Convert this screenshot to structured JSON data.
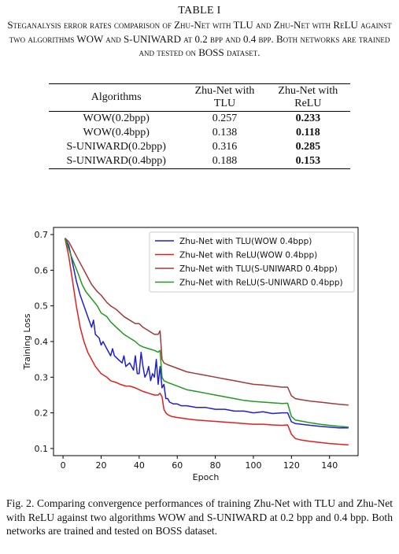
{
  "table": {
    "title": "TABLE I",
    "caption": "Steganalysis error rates comparison of Zhu-Net with TLU and Zhu-Net with ReLU against two algorithms WOW and S-UNIWARD at 0.2 bpp and 0.4 bpp. Both networks are trained and tested on BOSS dataset.",
    "headers": [
      "Algorithms",
      "Zhu-Net with TLU",
      "Zhu-Net with ReLU"
    ],
    "rows": [
      [
        "WOW(0.2bpp)",
        "0.257",
        "0.233"
      ],
      [
        "WOW(0.4bpp)",
        "0.138",
        "0.118"
      ],
      [
        "S-UNIWARD(0.2bpp)",
        "0.316",
        "0.285"
      ],
      [
        "S-UNIWARD(0.4bpp)",
        "0.188",
        "0.153"
      ]
    ]
  },
  "chart_data": {
    "type": "line",
    "title": "",
    "xlabel": "Epoch",
    "ylabel": "Training Loss",
    "xlim": [
      -5,
      155
    ],
    "ylim": [
      0.08,
      0.72
    ],
    "xticks": [
      0,
      20,
      40,
      60,
      80,
      100,
      120,
      140
    ],
    "yticks": [
      0.1,
      0.2,
      0.3,
      0.4,
      0.5,
      0.6,
      0.7
    ],
    "grid": false,
    "legend_position": "top-right",
    "series": [
      {
        "name": "Zhu-Net with TLU(WOW 0.4bpp)",
        "color": "#1f1fd0",
        "points": [
          [
            1,
            0.69
          ],
          [
            3,
            0.67
          ],
          [
            5,
            0.62
          ],
          [
            7,
            0.57
          ],
          [
            9,
            0.53
          ],
          [
            11,
            0.5
          ],
          [
            13,
            0.47
          ],
          [
            15,
            0.44
          ],
          [
            16,
            0.46
          ],
          [
            17,
            0.42
          ],
          [
            19,
            0.41
          ],
          [
            20,
            0.39
          ],
          [
            21,
            0.4
          ],
          [
            23,
            0.38
          ],
          [
            25,
            0.36
          ],
          [
            26,
            0.38
          ],
          [
            27,
            0.36
          ],
          [
            29,
            0.35
          ],
          [
            31,
            0.34
          ],
          [
            32,
            0.36
          ],
          [
            33,
            0.33
          ],
          [
            35,
            0.34
          ],
          [
            37,
            0.32
          ],
          [
            38,
            0.36
          ],
          [
            39,
            0.31
          ],
          [
            40,
            0.31
          ],
          [
            41,
            0.37
          ],
          [
            42,
            0.33
          ],
          [
            43,
            0.3
          ],
          [
            44,
            0.31
          ],
          [
            45,
            0.33
          ],
          [
            46,
            0.29
          ],
          [
            47,
            0.31
          ],
          [
            48,
            0.3
          ],
          [
            49,
            0.35
          ],
          [
            50,
            0.28
          ],
          [
            51,
            0.33
          ],
          [
            52,
            0.27
          ],
          [
            53,
            0.28
          ],
          [
            54,
            0.24
          ],
          [
            55,
            0.24
          ],
          [
            56,
            0.23
          ],
          [
            58,
            0.225
          ],
          [
            60,
            0.225
          ],
          [
            62,
            0.22
          ],
          [
            65,
            0.22
          ],
          [
            70,
            0.215
          ],
          [
            75,
            0.215
          ],
          [
            80,
            0.21
          ],
          [
            85,
            0.21
          ],
          [
            90,
            0.205
          ],
          [
            95,
            0.205
          ],
          [
            100,
            0.2
          ],
          [
            105,
            0.203
          ],
          [
            110,
            0.198
          ],
          [
            115,
            0.2
          ],
          [
            118,
            0.2
          ],
          [
            120,
            0.175
          ],
          [
            122,
            0.17
          ],
          [
            125,
            0.168
          ],
          [
            130,
            0.165
          ],
          [
            135,
            0.162
          ],
          [
            140,
            0.16
          ],
          [
            145,
            0.158
          ],
          [
            150,
            0.158
          ]
        ]
      },
      {
        "name": "Zhu-Net with ReLU(WOW 0.4bpp)",
        "color": "#e01f1f",
        "points": [
          [
            1,
            0.69
          ],
          [
            3,
            0.64
          ],
          [
            5,
            0.57
          ],
          [
            7,
            0.5
          ],
          [
            9,
            0.44
          ],
          [
            11,
            0.4
          ],
          [
            13,
            0.37
          ],
          [
            15,
            0.35
          ],
          [
            17,
            0.33
          ],
          [
            20,
            0.31
          ],
          [
            23,
            0.3
          ],
          [
            25,
            0.29
          ],
          [
            28,
            0.285
          ],
          [
            30,
            0.28
          ],
          [
            33,
            0.275
          ],
          [
            35,
            0.275
          ],
          [
            38,
            0.27
          ],
          [
            40,
            0.265
          ],
          [
            42,
            0.26
          ],
          [
            45,
            0.255
          ],
          [
            48,
            0.25
          ],
          [
            50,
            0.25
          ],
          [
            51,
            0.255
          ],
          [
            52,
            0.245
          ],
          [
            53,
            0.21
          ],
          [
            54,
            0.2
          ],
          [
            55,
            0.195
          ],
          [
            57,
            0.19
          ],
          [
            60,
            0.187
          ],
          [
            65,
            0.183
          ],
          [
            70,
            0.18
          ],
          [
            75,
            0.178
          ],
          [
            80,
            0.176
          ],
          [
            85,
            0.174
          ],
          [
            90,
            0.172
          ],
          [
            95,
            0.17
          ],
          [
            100,
            0.168
          ],
          [
            105,
            0.168
          ],
          [
            110,
            0.166
          ],
          [
            115,
            0.165
          ],
          [
            118,
            0.166
          ],
          [
            120,
            0.14
          ],
          [
            122,
            0.128
          ],
          [
            125,
            0.124
          ],
          [
            130,
            0.12
          ],
          [
            135,
            0.117
          ],
          [
            140,
            0.114
          ],
          [
            145,
            0.112
          ],
          [
            150,
            0.11
          ]
        ]
      },
      {
        "name": "Zhu-Net with TLU(S-UNIWARD 0.4bpp)",
        "color": "#a03a3a",
        "points": [
          [
            1,
            0.69
          ],
          [
            3,
            0.68
          ],
          [
            5,
            0.66
          ],
          [
            8,
            0.63
          ],
          [
            10,
            0.61
          ],
          [
            12,
            0.59
          ],
          [
            15,
            0.56
          ],
          [
            18,
            0.54
          ],
          [
            20,
            0.53
          ],
          [
            23,
            0.51
          ],
          [
            25,
            0.5
          ],
          [
            28,
            0.49
          ],
          [
            30,
            0.48
          ],
          [
            32,
            0.47
          ],
          [
            35,
            0.46
          ],
          [
            38,
            0.45
          ],
          [
            40,
            0.45
          ],
          [
            42,
            0.44
          ],
          [
            45,
            0.43
          ],
          [
            48,
            0.42
          ],
          [
            50,
            0.42
          ],
          [
            51,
            0.43
          ],
          [
            52,
            0.35
          ],
          [
            53,
            0.34
          ],
          [
            55,
            0.335
          ],
          [
            60,
            0.325
          ],
          [
            65,
            0.315
          ],
          [
            70,
            0.31
          ],
          [
            75,
            0.305
          ],
          [
            80,
            0.3
          ],
          [
            85,
            0.295
          ],
          [
            90,
            0.29
          ],
          [
            95,
            0.285
          ],
          [
            100,
            0.28
          ],
          [
            105,
            0.278
          ],
          [
            110,
            0.275
          ],
          [
            115,
            0.272
          ],
          [
            118,
            0.272
          ],
          [
            120,
            0.248
          ],
          [
            122,
            0.24
          ],
          [
            125,
            0.237
          ],
          [
            130,
            0.233
          ],
          [
            135,
            0.23
          ],
          [
            140,
            0.227
          ],
          [
            145,
            0.224
          ],
          [
            150,
            0.222
          ]
        ]
      },
      {
        "name": "Zhu-Net with ReLU(S-UNIWARD 0.4bpp)",
        "color": "#1f9a1f",
        "points": [
          [
            1,
            0.69
          ],
          [
            3,
            0.66
          ],
          [
            5,
            0.63
          ],
          [
            8,
            0.59
          ],
          [
            10,
            0.56
          ],
          [
            12,
            0.54
          ],
          [
            15,
            0.52
          ],
          [
            18,
            0.5
          ],
          [
            20,
            0.48
          ],
          [
            23,
            0.47
          ],
          [
            25,
            0.455
          ],
          [
            28,
            0.44
          ],
          [
            30,
            0.43
          ],
          [
            32,
            0.42
          ],
          [
            35,
            0.41
          ],
          [
            38,
            0.4
          ],
          [
            40,
            0.39
          ],
          [
            42,
            0.385
          ],
          [
            45,
            0.38
          ],
          [
            48,
            0.375
          ],
          [
            50,
            0.37
          ],
          [
            51,
            0.375
          ],
          [
            52,
            0.3
          ],
          [
            53,
            0.29
          ],
          [
            55,
            0.285
          ],
          [
            60,
            0.275
          ],
          [
            65,
            0.265
          ],
          [
            70,
            0.26
          ],
          [
            75,
            0.255
          ],
          [
            80,
            0.25
          ],
          [
            85,
            0.245
          ],
          [
            90,
            0.24
          ],
          [
            95,
            0.235
          ],
          [
            100,
            0.232
          ],
          [
            105,
            0.23
          ],
          [
            110,
            0.228
          ],
          [
            115,
            0.226
          ],
          [
            118,
            0.227
          ],
          [
            120,
            0.19
          ],
          [
            122,
            0.18
          ],
          [
            125,
            0.177
          ],
          [
            130,
            0.172
          ],
          [
            135,
            0.168
          ],
          [
            140,
            0.165
          ],
          [
            145,
            0.162
          ],
          [
            150,
            0.16
          ]
        ]
      }
    ]
  },
  "figure": {
    "caption": "Fig. 2.  Comparing convergence performances of training Zhu-Net with TLU and Zhu-Net with ReLU against two algorithms WOW and S-UNIWARD at 0.2 bpp and 0.4 bpp. Both networks are trained and tested on BOSS dataset."
  }
}
